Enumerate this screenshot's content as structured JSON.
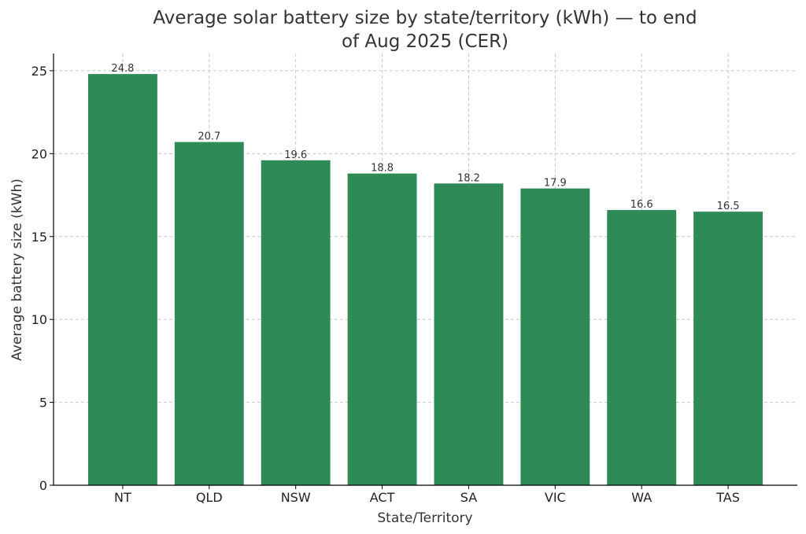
{
  "chart_data": {
    "type": "bar",
    "title_lines": [
      "Average solar battery size by state/territory (kWh) — to end",
      "of Aug 2025 (CER)"
    ],
    "xlabel": "State/Territory",
    "ylabel": "Average battery size (kWh)",
    "categories": [
      "NT",
      "QLD",
      "NSW",
      "ACT",
      "SA",
      "VIC",
      "WA",
      "TAS"
    ],
    "values": [
      24.8,
      20.7,
      19.6,
      18.8,
      18.2,
      17.9,
      16.6,
      16.5
    ],
    "value_labels": [
      "24.8",
      "20.7",
      "19.6",
      "18.8",
      "18.2",
      "17.9",
      "16.6",
      "16.5"
    ],
    "ylim": [
      0,
      26.04
    ],
    "yticks": [
      0,
      5,
      10,
      15,
      20,
      25
    ],
    "ytick_labels": [
      "0",
      "5",
      "10",
      "15",
      "20",
      "25"
    ],
    "grid": true,
    "bar_color": "#2e8b57"
  }
}
